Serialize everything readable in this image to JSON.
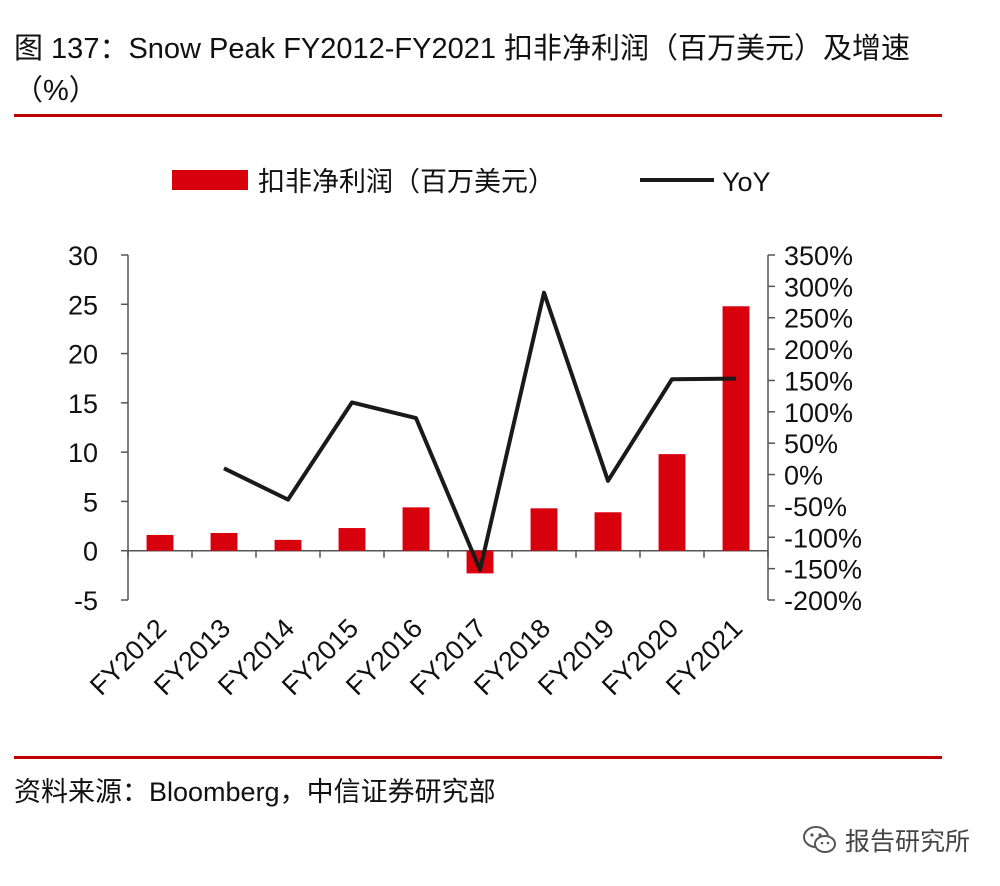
{
  "title": "图 137：Snow Peak FY2012-FY2021 扣非净利润（百万美元）及增速（%）",
  "source": "资料来源：Bloomberg，中信证券研究部",
  "watermark": {
    "text": "报告研究所",
    "icon": "wechat-icon"
  },
  "colors": {
    "bar": "#d9000d",
    "line": "#1a1a1a",
    "rule": "#c00000"
  },
  "chart_data": {
    "type": "bar+line",
    "categories": [
      "FY2012",
      "FY2013",
      "FY2014",
      "FY2015",
      "FY2016",
      "FY2017",
      "FY2018",
      "FY2019",
      "FY2020",
      "FY2021"
    ],
    "series": [
      {
        "name": "扣非净利润（百万美元）",
        "type": "bar",
        "axis": "left",
        "values": [
          1.6,
          1.8,
          1.1,
          2.3,
          4.4,
          -2.3,
          4.3,
          3.9,
          9.8,
          24.8
        ]
      },
      {
        "name": "YoY",
        "type": "line",
        "axis": "right",
        "values": [
          null,
          10,
          -40,
          115,
          90,
          -152,
          290,
          -10,
          152,
          153
        ]
      }
    ],
    "y_left": {
      "min": -5,
      "max": 30,
      "ticks": [
        -5,
        0,
        5,
        10,
        15,
        20,
        25,
        30
      ]
    },
    "y_right": {
      "min": -200,
      "max": 350,
      "ticks": [
        -200,
        -150,
        -100,
        -50,
        0,
        50,
        100,
        150,
        200,
        250,
        300,
        350
      ],
      "tick_labels": [
        "-200%",
        "-150%",
        "-100%",
        "-50%",
        "0%",
        "50%",
        "100%",
        "150%",
        "200%",
        "250%",
        "300%",
        "350%"
      ]
    },
    "y_left_labels": [
      "-5",
      "0",
      "5",
      "10",
      "15",
      "20",
      "25",
      "30"
    ],
    "legend": {
      "position": "top"
    }
  }
}
